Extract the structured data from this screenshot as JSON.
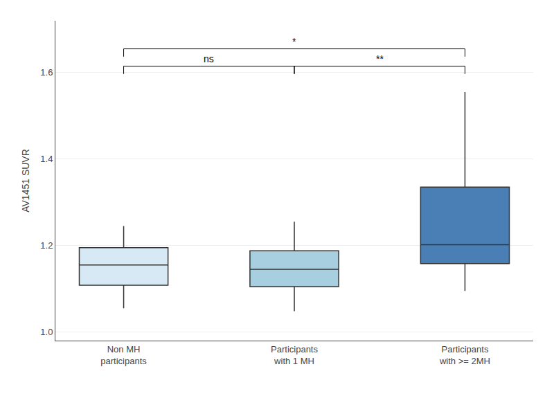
{
  "chart_data": {
    "type": "box",
    "categories": [
      "Non MH\nparticipants",
      "Participants\nwith 1 MH",
      "Participants\nwith >= 2MH"
    ],
    "boxes": [
      {
        "q1": 1.108,
        "median": 1.155,
        "q3": 1.195,
        "whisker_low": 1.055,
        "whisker_high": 1.245
      },
      {
        "q1": 1.105,
        "median": 1.145,
        "q3": 1.188,
        "whisker_low": 1.048,
        "whisker_high": 1.255
      },
      {
        "q1": 1.158,
        "median": 1.202,
        "q3": 1.335,
        "whisker_low": 1.095,
        "whisker_high": 1.555
      }
    ],
    "colors": [
      "#d6e9f5",
      "#a8cfe0",
      "#4a7fb5"
    ],
    "color": "#333333",
    "ylabel": "AV1451 SUVR",
    "ylim": [
      0.98,
      1.72
    ],
    "yticks": [
      {
        "value": 1.0,
        "label": "1.0"
      },
      1.2,
      1.4,
      1.6
    ],
    "grid": true,
    "brackets": [
      {
        "from": "Non MH\nparticipants",
        "to": "Participants\nwith >= 2MH",
        "y": 1.655,
        "label": "*"
      },
      {
        "from": "Non MH\nparticipants",
        "to": "Participants\nwith 1 MH",
        "y": 1.615,
        "label": "ns"
      },
      {
        "from": "Participants\nwith 1 MH",
        "to": "Participants\nwith >= 2MH",
        "y": 1.615,
        "label": "**"
      }
    ]
  }
}
